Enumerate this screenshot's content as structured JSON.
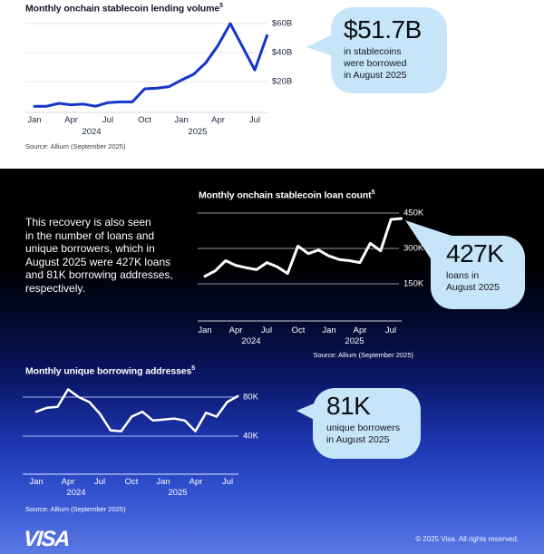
{
  "colors": {
    "visa_blue_line": "#1434cb",
    "white_line": "#ffffff",
    "callout_background": "#c6e5f8",
    "dark_gradient_top": "#000000",
    "dark_gradient_bottom": "#5a78e2"
  },
  "chart_data": [
    {
      "type": "line",
      "title": "Monthly onchain stablecoin lending volume",
      "footnote_marker": "5",
      "source": "Source: Allium (September 2025)",
      "unit": "USD billions",
      "line_color": "#1434cb",
      "months": [
        "Jan 2024",
        "Feb 2024",
        "Mar 2024",
        "Apr 2024",
        "May 2024",
        "Jun 2024",
        "Jul 2024",
        "Aug 2024",
        "Sep 2024",
        "Oct 2024",
        "Nov 2024",
        "Dec 2024",
        "Jan 2025",
        "Feb 2025",
        "Mar 2025",
        "Apr 2025",
        "May 2025",
        "Jun 2025",
        "Jul 2025",
        "Aug 2025"
      ],
      "values": [
        3,
        3,
        5,
        4,
        4.5,
        3,
        5.5,
        6,
        6,
        15,
        15.5,
        16.5,
        21,
        25,
        33,
        45,
        60,
        44,
        28,
        51.7
      ],
      "ylim": [
        0,
        65
      ],
      "grid": true,
      "y_gridlines": [
        60,
        40,
        20
      ],
      "y_tick_labels": [
        "$60B",
        "$40B",
        "$20B"
      ],
      "x_tick_labels": [
        "Jan",
        "Apr",
        "Jul",
        "Oct",
        "Jan",
        "Apr",
        "Jul"
      ],
      "year_labels": [
        "2024",
        "2025"
      ]
    },
    {
      "type": "line",
      "title": "Monthly onchain stablecoin loan count",
      "footnote_marker": "5",
      "source": "Source: Allium (September 2025)",
      "unit": "thousands of loans",
      "line_color": "#ffffff",
      "months": [
        "Jan 2024",
        "Feb 2024",
        "Mar 2024",
        "Apr 2024",
        "May 2024",
        "Jun 2024",
        "Jul 2024",
        "Aug 2024",
        "Sep 2024",
        "Oct 2024",
        "Nov 2024",
        "Dec 2024",
        "Jan 2025",
        "Feb 2025",
        "Mar 2025",
        "Apr 2025",
        "May 2025",
        "Jun 2025",
        "Jul 2025",
        "Aug 2025"
      ],
      "values": [
        182,
        205,
        248,
        228,
        218,
        210,
        240,
        222,
        194,
        310,
        278,
        293,
        268,
        253,
        248,
        240,
        322,
        290,
        423,
        427
      ],
      "ylim": [
        150,
        450
      ],
      "grid": true,
      "y_gridlines": [
        450,
        300,
        150
      ],
      "y_tick_labels": [
        "450K",
        "300K",
        "150K"
      ],
      "x_tick_labels": [
        "Jan",
        "Apr",
        "Jul",
        "Oct",
        "Jan",
        "Apr",
        "Jul"
      ],
      "year_labels": [
        "2024",
        "2025"
      ]
    },
    {
      "type": "line",
      "title": "Monthly unique borrowing addresses",
      "footnote_marker": "5",
      "source": "Source: Allium (September 2025)",
      "unit": "thousands of addresses",
      "line_color": "#ffffff",
      "months": [
        "Jan 2024",
        "Feb 2024",
        "Mar 2024",
        "Apr 2024",
        "May 2024",
        "Jun 2024",
        "Jul 2024",
        "Aug 2024",
        "Sep 2024",
        "Oct 2024",
        "Nov 2024",
        "Dec 2024",
        "Jan 2025",
        "Feb 2025",
        "Mar 2025",
        "Apr 2025",
        "May 2025",
        "Jun 2025",
        "Jul 2025",
        "Aug 2025"
      ],
      "values": [
        65,
        69,
        70,
        88,
        80,
        75,
        63,
        46,
        45,
        60,
        65,
        56,
        57,
        58,
        56,
        45,
        64,
        60,
        75,
        81
      ],
      "ylim": [
        40,
        80
      ],
      "grid": true,
      "y_gridlines": [
        80,
        40
      ],
      "y_tick_labels": [
        "80K",
        "40K"
      ],
      "x_tick_labels": [
        "Jan",
        "Apr",
        "Jul",
        "Oct",
        "Jan",
        "Apr",
        "Jul"
      ],
      "year_labels": [
        "2024",
        "2025"
      ]
    }
  ],
  "callouts": [
    {
      "value": "$51.7B",
      "caption": "in stablecoins\nwere borrowed\nin August 2025"
    },
    {
      "value": "427K",
      "caption": "loans in\nAugust 2025"
    },
    {
      "value": "81K",
      "caption": "unique borrowers\nin August 2025"
    }
  ],
  "intro_paragraph": "This recovery is also seen\nin the number of loans and\nunique borrowers, which in\nAugust 2025 were 427K loans\nand 81K borrowing addresses,\nrespectively.",
  "footer": {
    "logo": "VISA",
    "copyright": "© 2025 Visa. All rights reserved."
  }
}
